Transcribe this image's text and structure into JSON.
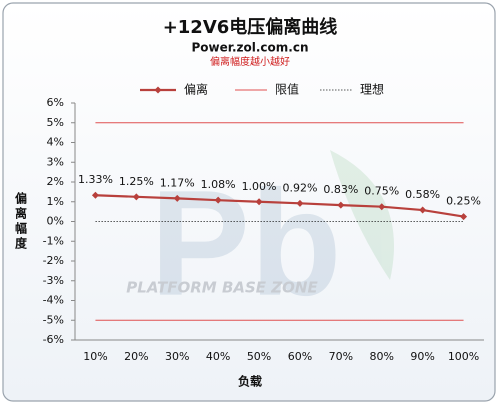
{
  "chart_data": {
    "type": "line",
    "title": "+12V6电压偏离曲线",
    "subtitle": "Power.zol.com.cn",
    "note": "偏离幅度越小越好",
    "watermark": "PLATFORM BASE ZONE",
    "x_label": "负载",
    "y_label": "偏离幅度",
    "categories": [
      "10%",
      "20%",
      "30%",
      "40%",
      "50%",
      "60%",
      "70%",
      "80%",
      "90%",
      "100%"
    ],
    "series": [
      {
        "name": "偏离",
        "color": "#b8403c",
        "values": [
          1.33,
          1.25,
          1.17,
          1.08,
          1.0,
          0.92,
          0.83,
          0.75,
          0.58,
          0.25
        ],
        "value_labels": [
          "1.33%",
          "1.25%",
          "1.17%",
          "1.08%",
          "1.00%",
          "0.92%",
          "0.83%",
          "0.75%",
          "0.58%",
          "0.25%"
        ]
      }
    ],
    "reference_lines": [
      {
        "name": "限值",
        "color": "#e05050",
        "style": "solid",
        "values": [
          5,
          -5
        ]
      },
      {
        "name": "理想",
        "color": "#222222",
        "style": "dotted",
        "values": [
          0
        ]
      }
    ],
    "ylim": [
      -6,
      6
    ],
    "yticks": [
      {
        "value": -6,
        "label": "-6%"
      },
      {
        "value": -5,
        "label": "-5%"
      },
      {
        "value": -4,
        "label": "-4%"
      },
      {
        "value": -3,
        "label": "-3%"
      },
      {
        "value": -2,
        "label": "-2%"
      },
      {
        "value": -1,
        "label": "-1%"
      },
      {
        "value": 0,
        "label": "0%"
      },
      {
        "value": 1,
        "label": "1%"
      },
      {
        "value": 2,
        "label": "2%"
      },
      {
        "value": 3,
        "label": "3%"
      },
      {
        "value": 4,
        "label": "4%"
      },
      {
        "value": 5,
        "label": "5%"
      },
      {
        "value": 6,
        "label": "6%"
      }
    ],
    "legend": "top"
  }
}
